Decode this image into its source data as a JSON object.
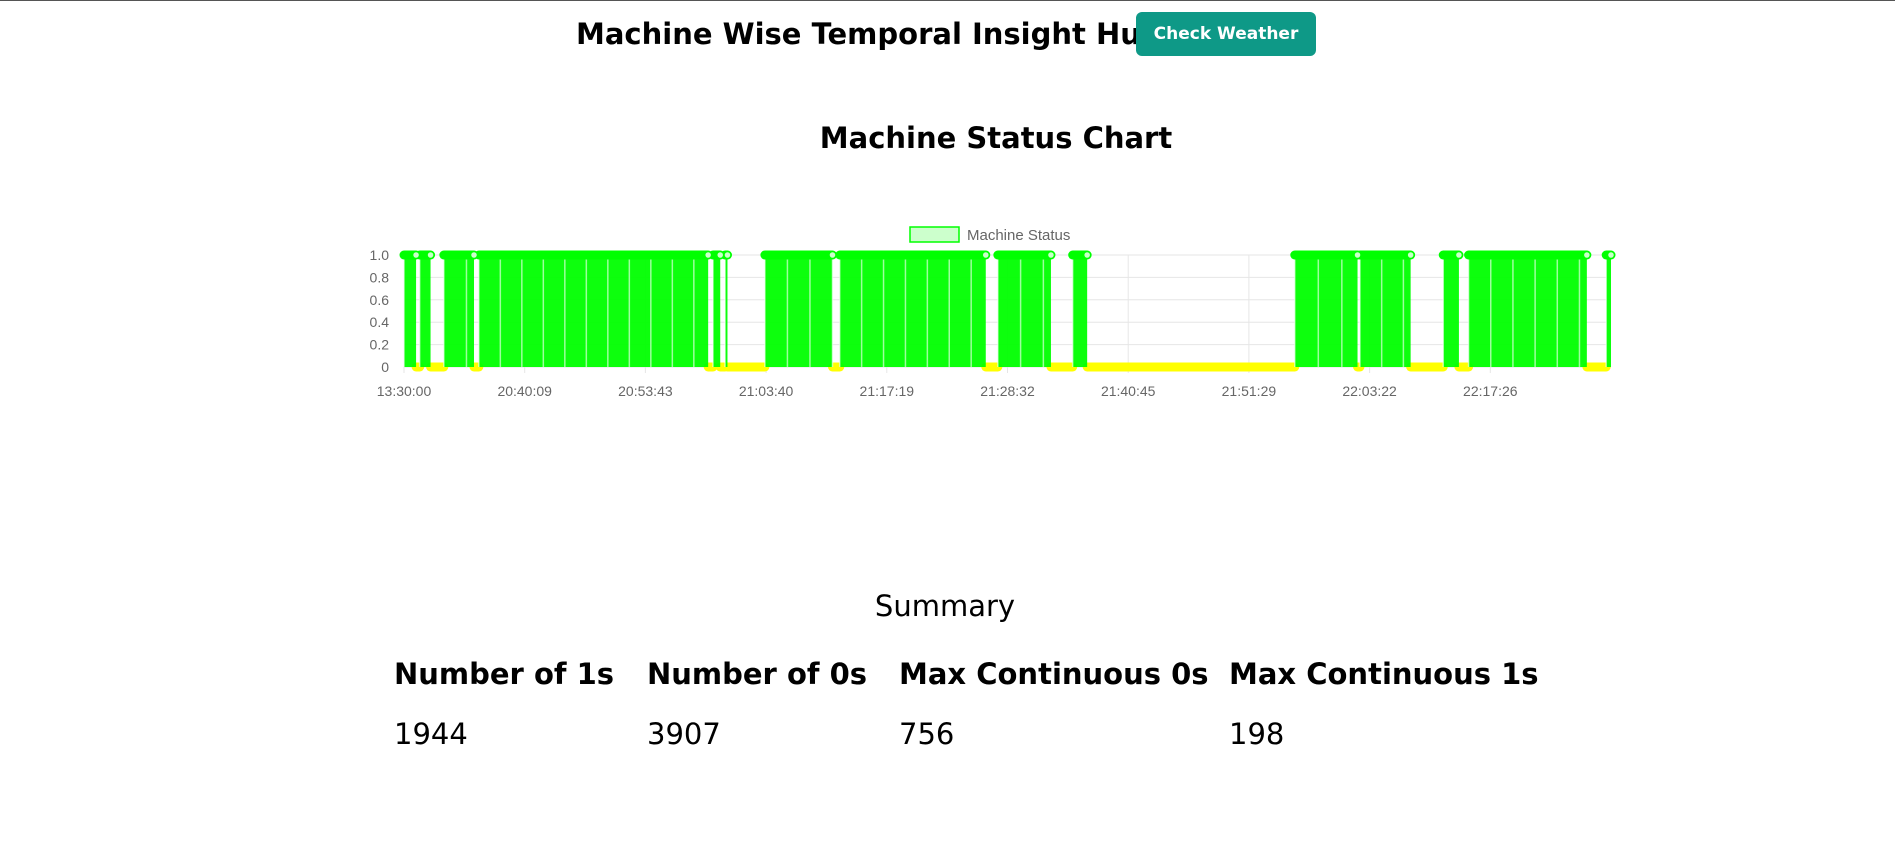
{
  "header": {
    "title": "Machine Wise Temporal Insight Hub",
    "weather_button": "Check Weather"
  },
  "chart_section": {
    "title": "Machine Status Chart"
  },
  "chart_data": {
    "type": "line",
    "legend": {
      "entries": [
        "Machine Status"
      ],
      "placement": "top-center"
    },
    "y_ticks": [
      "0",
      "0.2",
      "0.4",
      "0.6",
      "0.8",
      "1.0"
    ],
    "ylim": [
      0,
      1
    ],
    "x_ticks": [
      "13:30:00",
      "20:40:09",
      "20:53:43",
      "21:03:40",
      "21:17:19",
      "21:28:32",
      "21:40:45",
      "21:51:29",
      "22:03:22",
      "22:17:26"
    ],
    "grid": true,
    "colors": {
      "on": "#00ff00",
      "off": "#ffff00",
      "grid": "#e6e6e6",
      "axis_text": "#666666"
    },
    "status_segments": [
      {
        "from": 0.0,
        "to": 0.01,
        "value": 1
      },
      {
        "from": 0.01,
        "to": 0.013,
        "value": 0
      },
      {
        "from": 0.013,
        "to": 0.022,
        "value": 1
      },
      {
        "from": 0.022,
        "to": 0.033,
        "value": 0
      },
      {
        "from": 0.033,
        "to": 0.058,
        "value": 1
      },
      {
        "from": 0.058,
        "to": 0.062,
        "value": 0
      },
      {
        "from": 0.062,
        "to": 0.252,
        "value": 1
      },
      {
        "from": 0.252,
        "to": 0.256,
        "value": 0
      },
      {
        "from": 0.256,
        "to": 0.262,
        "value": 1
      },
      {
        "from": 0.262,
        "to": 0.266,
        "value": 0
      },
      {
        "from": 0.266,
        "to": 0.268,
        "value": 1
      },
      {
        "from": 0.268,
        "to": 0.299,
        "value": 0
      },
      {
        "from": 0.299,
        "to": 0.355,
        "value": 1
      },
      {
        "from": 0.355,
        "to": 0.361,
        "value": 0
      },
      {
        "from": 0.361,
        "to": 0.482,
        "value": 1
      },
      {
        "from": 0.482,
        "to": 0.492,
        "value": 0
      },
      {
        "from": 0.492,
        "to": 0.536,
        "value": 1
      },
      {
        "from": 0.536,
        "to": 0.554,
        "value": 0
      },
      {
        "from": 0.554,
        "to": 0.566,
        "value": 1
      },
      {
        "from": 0.566,
        "to": 0.61,
        "value": 0
      },
      {
        "from": 0.61,
        "to": 0.738,
        "value": 0
      },
      {
        "from": 0.738,
        "to": 0.79,
        "value": 1
      },
      {
        "from": 0.79,
        "to": 0.792,
        "value": 0
      },
      {
        "from": 0.792,
        "to": 0.834,
        "value": 1
      },
      {
        "from": 0.834,
        "to": 0.861,
        "value": 0
      },
      {
        "from": 0.861,
        "to": 0.874,
        "value": 1
      },
      {
        "from": 0.874,
        "to": 0.882,
        "value": 0
      },
      {
        "from": 0.882,
        "to": 0.98,
        "value": 1
      },
      {
        "from": 0.98,
        "to": 0.996,
        "value": 0
      },
      {
        "from": 0.996,
        "to": 1.0,
        "value": 1
      }
    ]
  },
  "summary": {
    "heading": "Summary",
    "stats": [
      {
        "label": "Number of 1s",
        "value": "1944"
      },
      {
        "label": "Number of 0s",
        "value": "3907"
      },
      {
        "label": "Max Continuous 0s",
        "value": "756"
      },
      {
        "label": "Max Continuous 1s",
        "value": "198"
      }
    ]
  }
}
